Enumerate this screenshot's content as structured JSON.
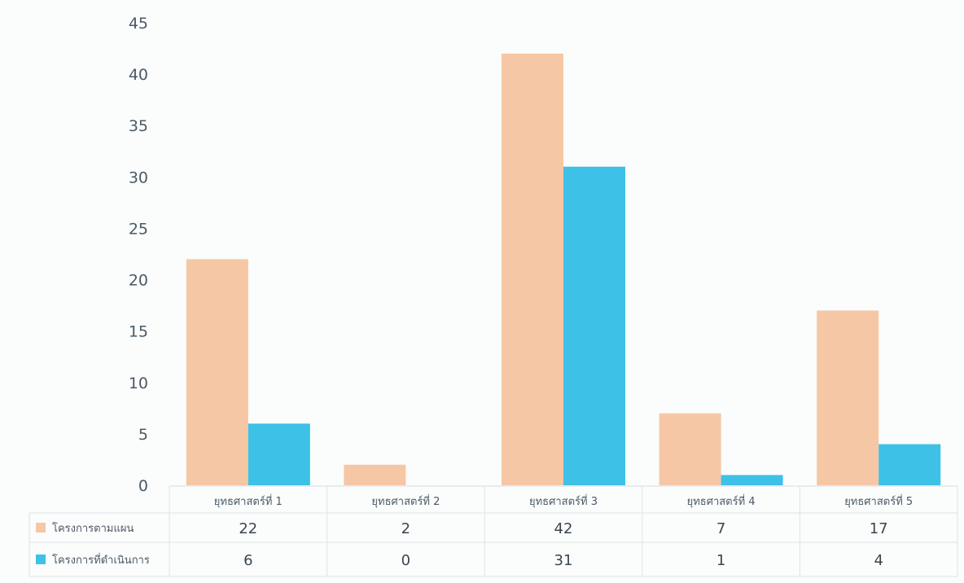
{
  "chart_data": {
    "type": "bar",
    "categories": [
      "ยุทธศาสตร์ที่ 1",
      "ยุทธศาสตร์ที่ 2",
      "ยุทธศาสตร์ที่ 3",
      "ยุทธศาสตร์ที่ 4",
      "ยุทธศาสตร์ที่ 5"
    ],
    "series": [
      {
        "name": "โครงการตามแผน",
        "values": [
          22,
          2,
          42,
          7,
          17
        ],
        "color": "#f6c7a4"
      },
      {
        "name": "โครงการที่ดำเนินการ",
        "values": [
          6,
          0,
          31,
          1,
          4
        ],
        "color": "#3ec1e6"
      }
    ],
    "yticks": [
      0,
      5,
      10,
      15,
      20,
      25,
      30,
      35,
      40,
      45
    ],
    "ylim": [
      0,
      45
    ],
    "grid": false,
    "legend_placement": "data-table-left",
    "title": "",
    "xlabel": "",
    "ylabel": ""
  }
}
